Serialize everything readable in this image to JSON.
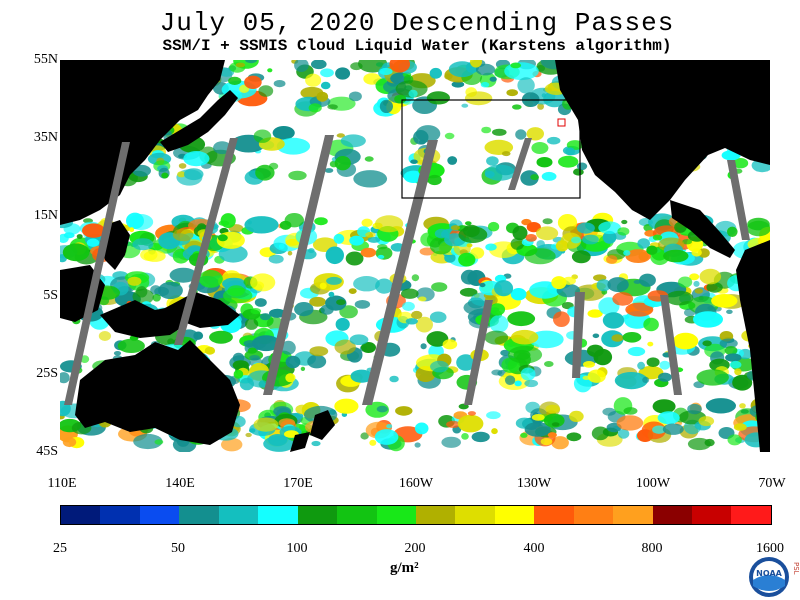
{
  "title": "July 05, 2020  Descending Passes",
  "subtitle": "SSM/I + SSMIS Cloud Liquid Water (Karstens algorithm)",
  "map": {
    "lat_labels": [
      "55N",
      "35N",
      "15N",
      "5S",
      "25S",
      "45S"
    ],
    "lon_labels": [
      "110E",
      "140E",
      "170E",
      "160W",
      "130W",
      "100W",
      "70W"
    ],
    "land_color": "#000000",
    "no_data_color": "#6e6e6e",
    "box_color": "#000000",
    "small_box_color": "#e00000"
  },
  "colorbar": {
    "colors": [
      "#001a7a",
      "#0030b0",
      "#0a4cf0",
      "#138f8f",
      "#14bfbf",
      "#14ffff",
      "#0f9a0f",
      "#12c412",
      "#18e818",
      "#b0b000",
      "#dede00",
      "#ffff00",
      "#ff5a0a",
      "#ff7f14",
      "#ffa01e",
      "#8b0000",
      "#c80000",
      "#ff1a1a"
    ],
    "tick_labels": [
      "25",
      "50",
      "100",
      "200",
      "400",
      "800",
      "1600"
    ],
    "unit": "g/m²"
  },
  "logo": {
    "text": "NOAA",
    "side_text": "PSL"
  }
}
